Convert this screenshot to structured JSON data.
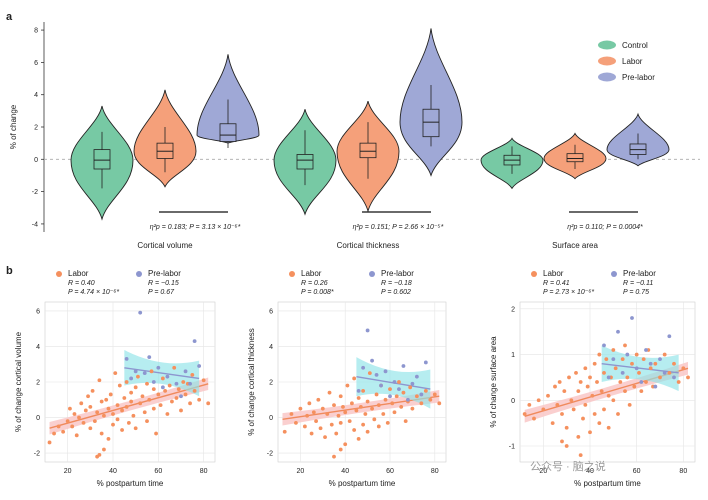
{
  "panel_a_label": "a",
  "panel_b_label": "b",
  "watermark": "公众号 · 脑之说",
  "colors": {
    "control": "#77c9a4",
    "labor": "#f5a07a",
    "prelabor": "#9fa8d6",
    "labor_pt": "#f5905e",
    "prelabor_pt": "#8d96cf",
    "ci_labor": "#f9c7c7",
    "ci_prelabor": "#8fe3e8"
  },
  "chart_data": [
    {
      "type": "violin",
      "title": "",
      "ylabel": "% of change",
      "ylim": [
        -4.5,
        8.5
      ],
      "yticks": [
        -4,
        -2,
        0,
        2,
        4,
        6,
        8
      ],
      "legend": {
        "placement": "top-right",
        "entries": [
          "Control",
          "Labor",
          "Pre-labor"
        ]
      },
      "groups": [
        {
          "name": "Cortical volume",
          "stat": "η²p = 0.183; P = 3.13 × 10⁻⁶*",
          "series": [
            {
              "name": "Control",
              "min": -3.7,
              "max": 3.3,
              "q1": -0.6,
              "median": -0.05,
              "q3": 0.6,
              "wlo": -1.8,
              "whi": 1.7
            },
            {
              "name": "Labor",
              "min": -1.7,
              "max": 4.3,
              "q1": 0.05,
              "median": 0.5,
              "q3": 1.0,
              "wlo": -0.8,
              "whi": 2.0
            },
            {
              "name": "Pre-labor",
              "min": 1.0,
              "max": 6.5,
              "q1": 1.1,
              "median": 1.5,
              "q3": 2.2,
              "wlo": 0.7,
              "whi": 3.7
            }
          ]
        },
        {
          "name": "Cortical thickness",
          "stat": "η²p = 0.151; P = 2.66 × 10⁻⁵*",
          "series": [
            {
              "name": "Control",
              "min": -3.4,
              "max": 3.1,
              "q1": -0.6,
              "median": -0.05,
              "q3": 0.3,
              "wlo": -1.6,
              "whi": 1.8
            },
            {
              "name": "Labor",
              "min": -3.2,
              "max": 3.6,
              "q1": 0.1,
              "median": 0.5,
              "q3": 1.0,
              "wlo": -1.2,
              "whi": 2.3
            },
            {
              "name": "Pre-labor",
              "min": -1.0,
              "max": 8.1,
              "q1": 1.4,
              "median": 2.3,
              "q3": 3.1,
              "wlo": 0.8,
              "whi": 4.6
            }
          ]
        },
        {
          "name": "Surface area",
          "stat": "η²p = 0.110; P = 0.0004*",
          "series": [
            {
              "name": "Control",
              "min": -1.8,
              "max": 1.3,
              "q1": -0.35,
              "median": -0.05,
              "q3": 0.25,
              "wlo": -0.9,
              "whi": 0.8
            },
            {
              "name": "Labor",
              "min": -1.2,
              "max": 1.6,
              "q1": -0.15,
              "median": 0.05,
              "q3": 0.35,
              "wlo": -0.6,
              "whi": 0.9
            },
            {
              "name": "Pre-labor",
              "min": -0.4,
              "max": 2.8,
              "q1": 0.3,
              "median": 0.6,
              "q3": 0.95,
              "wlo": 0.0,
              "whi": 1.6
            }
          ]
        }
      ]
    },
    {
      "type": "scatter",
      "xlabel": "% postpartum time",
      "ylabel": "% of change cortical volume",
      "xlim": [
        10,
        85
      ],
      "ylim": [
        -2.5,
        6.5
      ],
      "xticks": [
        20,
        40,
        60,
        80
      ],
      "yticks": [
        -2,
        0,
        2,
        4,
        6
      ],
      "legend": [
        {
          "name": "Labor",
          "R": "R = 0.40",
          "P": "P = 4.74 × 10⁻⁶*"
        },
        {
          "name": "Pre-labor",
          "R": "R = −0.15",
          "P": "P = 0.67"
        }
      ],
      "fits": [
        {
          "name": "Labor",
          "x": [
            12,
            82
          ],
          "y": [
            -0.6,
            1.9
          ],
          "ci": 0.35
        },
        {
          "name": "Pre-labor",
          "x": [
            45,
            78
          ],
          "y": [
            2.8,
            2.2
          ],
          "ci": 1.0
        }
      ],
      "labor_points": [
        [
          12,
          -1.4
        ],
        [
          14,
          -0.9
        ],
        [
          16,
          -0.5
        ],
        [
          18,
          -0.8
        ],
        [
          20,
          -0.2
        ],
        [
          21,
          0.5
        ],
        [
          22,
          -0.5
        ],
        [
          23,
          0.2
        ],
        [
          24,
          -1.0
        ],
        [
          25,
          0.0
        ],
        [
          26,
          0.8
        ],
        [
          27,
          -0.3
        ],
        [
          28,
          0.4
        ],
        [
          29,
          1.2
        ],
        [
          30,
          -0.6
        ],
        [
          30,
          0.6
        ],
        [
          31,
          1.5
        ],
        [
          32,
          -0.2
        ],
        [
          33,
          0.3
        ],
        [
          34,
          2.1
        ],
        [
          35,
          -0.9
        ],
        [
          35,
          0.9
        ],
        [
          36,
          0.1
        ],
        [
          37,
          1.0
        ],
        [
          38,
          -1.2
        ],
        [
          38,
          0.5
        ],
        [
          39,
          1.3
        ],
        [
          40,
          -0.4
        ],
        [
          40,
          0.2
        ],
        [
          41,
          2.5
        ],
        [
          42,
          0.7
        ],
        [
          42,
          -0.1
        ],
        [
          43,
          1.8
        ],
        [
          44,
          0.4
        ],
        [
          44,
          -0.7
        ],
        [
          45,
          1.1
        ],
        [
          46,
          0.6
        ],
        [
          46,
          2.0
        ],
        [
          47,
          -0.3
        ],
        [
          48,
          1.4
        ],
        [
          48,
          0.9
        ],
        [
          49,
          0.1
        ],
        [
          50,
          1.7
        ],
        [
          50,
          -0.6
        ],
        [
          51,
          2.3
        ],
        [
          52,
          0.8
        ],
        [
          53,
          1.2
        ],
        [
          54,
          0.3
        ],
        [
          55,
          1.9
        ],
        [
          55,
          -0.2
        ],
        [
          56,
          1.0
        ],
        [
          57,
          2.6
        ],
        [
          58,
          0.5
        ],
        [
          58,
          1.6
        ],
        [
          59,
          -0.9
        ],
        [
          60,
          1.3
        ],
        [
          61,
          0.7
        ],
        [
          62,
          2.2
        ],
        [
          63,
          1.5
        ],
        [
          64,
          0.2
        ],
        [
          65,
          1.8
        ],
        [
          66,
          0.9
        ],
        [
          67,
          2.8
        ],
        [
          68,
          1.1
        ],
        [
          69,
          1.6
        ],
        [
          70,
          0.4
        ],
        [
          71,
          2.0
        ],
        [
          72,
          1.3
        ],
        [
          73,
          1.9
        ],
        [
          74,
          0.8
        ],
        [
          75,
          2.4
        ],
        [
          76,
          1.5
        ],
        [
          78,
          1.0
        ],
        [
          80,
          2.1
        ],
        [
          82,
          0.8
        ],
        [
          36,
          -1.8
        ],
        [
          34,
          -2.1
        ],
        [
          33,
          -2.2
        ]
      ],
      "prelabor_points": [
        [
          46,
          3.3
        ],
        [
          48,
          2.2
        ],
        [
          50,
          2.6
        ],
        [
          52,
          5.9
        ],
        [
          54,
          2.5
        ],
        [
          56,
          3.4
        ],
        [
          58,
          2.0
        ],
        [
          60,
          2.8
        ],
        [
          62,
          1.7
        ],
        [
          64,
          2.3
        ],
        [
          68,
          1.9
        ],
        [
          70,
          1.2
        ],
        [
          72,
          2.6
        ],
        [
          74,
          1.9
        ],
        [
          76,
          4.3
        ],
        [
          78,
          2.9
        ]
      ]
    },
    {
      "type": "scatter",
      "xlabel": "% postpartum time",
      "ylabel": "% of change cortical thickness",
      "xlim": [
        10,
        85
      ],
      "ylim": [
        -2.5,
        6.5
      ],
      "xticks": [
        20,
        40,
        60,
        80
      ],
      "yticks": [
        -2,
        0,
        2,
        4,
        6
      ],
      "legend": [
        {
          "name": "Labor",
          "R": "R = 0.26",
          "P": "P = 0.008*"
        },
        {
          "name": "Pre-labor",
          "R": "R = −0.18",
          "P": "P = 0.602"
        }
      ],
      "fits": [
        {
          "name": "Labor",
          "x": [
            12,
            82
          ],
          "y": [
            -0.1,
            1.2
          ],
          "ci": 0.35
        },
        {
          "name": "Pre-labor",
          "x": [
            45,
            78
          ],
          "y": [
            2.3,
            1.6
          ],
          "ci": 1.1
        }
      ],
      "labor_points": [
        [
          13,
          -0.8
        ],
        [
          16,
          0.2
        ],
        [
          18,
          -0.3
        ],
        [
          20,
          0.5
        ],
        [
          22,
          -0.5
        ],
        [
          23,
          0.1
        ],
        [
          24,
          0.8
        ],
        [
          25,
          -0.9
        ],
        [
          26,
          0.3
        ],
        [
          27,
          -0.2
        ],
        [
          28,
          1.0
        ],
        [
          29,
          -0.6
        ],
        [
          30,
          0.5
        ],
        [
          31,
          -1.1
        ],
        [
          32,
          0.2
        ],
        [
          33,
          1.4
        ],
        [
          34,
          -0.4
        ],
        [
          35,
          0.7
        ],
        [
          36,
          -0.9
        ],
        [
          37,
          0.1
        ],
        [
          38,
          1.2
        ],
        [
          38,
          -0.3
        ],
        [
          39,
          0.6
        ],
        [
          40,
          -1.5
        ],
        [
          40,
          0.3
        ],
        [
          41,
          1.8
        ],
        [
          42,
          -0.2
        ],
        [
          43,
          0.8
        ],
        [
          44,
          -0.7
        ],
        [
          44,
          2.2
        ],
        [
          45,
          0.4
        ],
        [
          46,
          1.1
        ],
        [
          46,
          -1.2
        ],
        [
          47,
          0.6
        ],
        [
          48,
          -0.4
        ],
        [
          48,
          1.5
        ],
        [
          49,
          0.2
        ],
        [
          50,
          0.9
        ],
        [
          50,
          -0.8
        ],
        [
          51,
          2.5
        ],
        [
          52,
          0.5
        ],
        [
          53,
          -0.1
        ],
        [
          54,
          1.3
        ],
        [
          55,
          0.7
        ],
        [
          55,
          -0.5
        ],
        [
          56,
          1.8
        ],
        [
          57,
          0.2
        ],
        [
          58,
          1.0
        ],
        [
          59,
          -0.3
        ],
        [
          60,
          1.6
        ],
        [
          61,
          0.8
        ],
        [
          62,
          0.3
        ],
        [
          63,
          1.2
        ],
        [
          64,
          2.0
        ],
        [
          65,
          0.6
        ],
        [
          66,
          1.4
        ],
        [
          67,
          -0.2
        ],
        [
          68,
          0.9
        ],
        [
          69,
          1.7
        ],
        [
          70,
          0.5
        ],
        [
          72,
          1.2
        ],
        [
          74,
          0.8
        ],
        [
          76,
          1.5
        ],
        [
          78,
          1.0
        ],
        [
          80,
          1.3
        ],
        [
          82,
          0.8
        ],
        [
          35,
          -2.2
        ],
        [
          38,
          -1.8
        ]
      ],
      "prelabor_points": [
        [
          46,
          1.5
        ],
        [
          48,
          2.8
        ],
        [
          50,
          4.9
        ],
        [
          52,
          3.2
        ],
        [
          54,
          2.4
        ],
        [
          56,
          1.8
        ],
        [
          58,
          2.6
        ],
        [
          60,
          1.2
        ],
        [
          62,
          2.0
        ],
        [
          64,
          1.6
        ],
        [
          66,
          2.9
        ],
        [
          68,
          1.0
        ],
        [
          70,
          1.9
        ],
        [
          72,
          2.3
        ],
        [
          74,
          1.3
        ],
        [
          76,
          3.1
        ]
      ]
    },
    {
      "type": "scatter",
      "xlabel": "% postpartum time",
      "ylabel": "% of change surface area",
      "xlim": [
        10,
        85
      ],
      "ylim": [
        -1.35,
        2.15
      ],
      "xticks": [
        20,
        40,
        60,
        80
      ],
      "yticks": [
        -1,
        0,
        1,
        2
      ],
      "legend": [
        {
          "name": "Labor",
          "R": "R = 0.41",
          "P": "P = 2.73 × 10⁻⁶*"
        },
        {
          "name": "Pre-labor",
          "R": "R = −0.11",
          "P": "P = 0.75"
        }
      ],
      "fits": [
        {
          "name": "Labor",
          "x": [
            12,
            82
          ],
          "y": [
            -0.35,
            0.7
          ],
          "ci": 0.14
        },
        {
          "name": "Pre-labor",
          "x": [
            45,
            78
          ],
          "y": [
            0.8,
            0.6
          ],
          "ci": 0.4
        }
      ],
      "labor_points": [
        [
          12,
          -0.3
        ],
        [
          14,
          -0.1
        ],
        [
          16,
          -0.4
        ],
        [
          18,
          0.0
        ],
        [
          20,
          -0.2
        ],
        [
          22,
          0.1
        ],
        [
          24,
          -0.5
        ],
        [
          25,
          0.3
        ],
        [
          26,
          -0.1
        ],
        [
          27,
          0.4
        ],
        [
          28,
          -0.3
        ],
        [
          29,
          0.2
        ],
        [
          30,
          -0.6
        ],
        [
          31,
          0.5
        ],
        [
          32,
          0.0
        ],
        [
          33,
          -0.2
        ],
        [
          34,
          0.6
        ],
        [
          35,
          -0.8
        ],
        [
          35,
          0.2
        ],
        [
          36,
          0.4
        ],
        [
          37,
          -0.4
        ],
        [
          38,
          0.7
        ],
        [
          38,
          -0.1
        ],
        [
          39,
          0.3
        ],
        [
          40,
          -0.7
        ],
        [
          40,
          0.5
        ],
        [
          41,
          0.1
        ],
        [
          42,
          0.8
        ],
        [
          42,
          -0.3
        ],
        [
          43,
          0.4
        ],
        [
          44,
          -0.5
        ],
        [
          44,
          1.0
        ],
        [
          45,
          0.2
        ],
        [
          46,
          0.6
        ],
        [
          46,
          -0.2
        ],
        [
          47,
          0.9
        ],
        [
          48,
          0.1
        ],
        [
          48,
          -0.6
        ],
        [
          49,
          0.5
        ],
        [
          50,
          1.1
        ],
        [
          50,
          0.0
        ],
        [
          51,
          0.7
        ],
        [
          52,
          -0.3
        ],
        [
          53,
          0.4
        ],
        [
          54,
          0.9
        ],
        [
          55,
          0.2
        ],
        [
          55,
          1.2
        ],
        [
          56,
          0.5
        ],
        [
          57,
          -0.1
        ],
        [
          58,
          0.8
        ],
        [
          59,
          0.3
        ],
        [
          60,
          1.0
        ],
        [
          61,
          0.6
        ],
        [
          62,
          0.2
        ],
        [
          63,
          0.9
        ],
        [
          64,
          0.4
        ],
        [
          65,
          1.1
        ],
        [
          66,
          0.7
        ],
        [
          67,
          0.3
        ],
        [
          68,
          0.8
        ],
        [
          70,
          0.5
        ],
        [
          72,
          1.0
        ],
        [
          74,
          0.6
        ],
        [
          76,
          0.8
        ],
        [
          78,
          0.4
        ],
        [
          80,
          0.7
        ],
        [
          82,
          0.5
        ],
        [
          30,
          -1.0
        ],
        [
          36,
          -1.2
        ],
        [
          28,
          -0.9
        ]
      ],
      "prelabor_points": [
        [
          46,
          1.2
        ],
        [
          48,
          0.5
        ],
        [
          50,
          0.9
        ],
        [
          52,
          1.5
        ],
        [
          54,
          0.6
        ],
        [
          56,
          1.0
        ],
        [
          58,
          1.8
        ],
        [
          60,
          0.7
        ],
        [
          62,
          0.4
        ],
        [
          64,
          1.1
        ],
        [
          66,
          0.8
        ],
        [
          68,
          0.3
        ],
        [
          70,
          0.9
        ],
        [
          72,
          0.6
        ],
        [
          74,
          1.4
        ],
        [
          76,
          0.5
        ]
      ]
    }
  ]
}
